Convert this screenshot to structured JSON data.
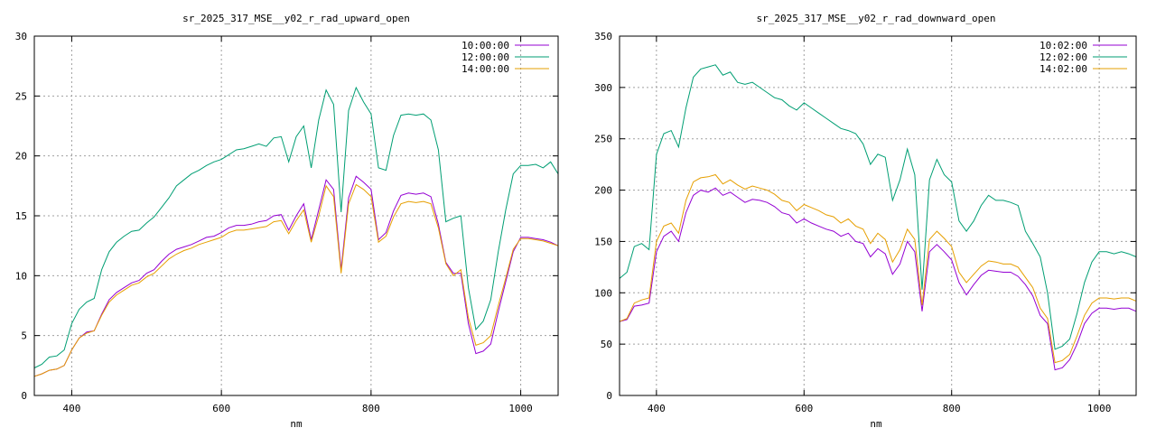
{
  "chart_data": [
    {
      "type": "line",
      "title": "sr_2025_317_MSE__y02_r_rad_upward_open",
      "xlabel": "nm",
      "ylabel": "",
      "xlim": [
        350,
        1050
      ],
      "ylim": [
        0,
        30
      ],
      "xticks": [
        400,
        600,
        800,
        1000
      ],
      "yticks": [
        0,
        5,
        10,
        15,
        20,
        25,
        30
      ],
      "grid": true,
      "legend_position": "top-right",
      "series": [
        {
          "name": "10:00:00",
          "color": "#9400d3",
          "x": [
            350,
            360,
            370,
            380,
            390,
            400,
            410,
            420,
            430,
            440,
            450,
            460,
            470,
            480,
            490,
            500,
            510,
            520,
            530,
            540,
            550,
            560,
            570,
            580,
            590,
            600,
            610,
            620,
            630,
            640,
            650,
            660,
            670,
            680,
            690,
            700,
            710,
            720,
            730,
            740,
            750,
            760,
            770,
            780,
            790,
            800,
            810,
            820,
            830,
            840,
            850,
            860,
            870,
            880,
            890,
            900,
            910,
            920,
            930,
            940,
            950,
            960,
            970,
            980,
            990,
            1000,
            1010,
            1020,
            1030,
            1040,
            1050
          ],
          "y": [
            1.6,
            1.8,
            2.1,
            2.2,
            2.5,
            3.8,
            4.8,
            5.3,
            5.4,
            6.8,
            8.0,
            8.6,
            9.0,
            9.4,
            9.6,
            10.2,
            10.5,
            11.2,
            11.8,
            12.2,
            12.4,
            12.6,
            12.9,
            13.2,
            13.3,
            13.6,
            14.0,
            14.2,
            14.2,
            14.3,
            14.5,
            14.6,
            15.0,
            15.1,
            13.8,
            15.0,
            16.0,
            13.0,
            15.5,
            18.0,
            17.2,
            10.5,
            16.5,
            18.3,
            17.8,
            17.2,
            13.0,
            13.6,
            15.4,
            16.7,
            16.9,
            16.8,
            16.9,
            16.6,
            14.3,
            11.1,
            10.2,
            10.2,
            6.0,
            3.5,
            3.7,
            4.3,
            7.0,
            9.5,
            12.0,
            13.2,
            13.2,
            13.1,
            13.0,
            12.8,
            12.5
          ]
        },
        {
          "name": "12:00:00",
          "color": "#009e73",
          "x": [
            350,
            360,
            370,
            380,
            390,
            400,
            410,
            420,
            430,
            440,
            450,
            460,
            470,
            480,
            490,
            500,
            510,
            520,
            530,
            540,
            550,
            560,
            570,
            580,
            590,
            600,
            610,
            620,
            630,
            640,
            650,
            660,
            670,
            680,
            690,
            700,
            710,
            720,
            730,
            740,
            750,
            760,
            770,
            780,
            790,
            800,
            810,
            820,
            830,
            840,
            850,
            860,
            870,
            880,
            890,
            900,
            910,
            920,
            930,
            940,
            950,
            960,
            970,
            980,
            990,
            1000,
            1010,
            1020,
            1030,
            1040,
            1050
          ],
          "y": [
            2.3,
            2.6,
            3.2,
            3.3,
            3.8,
            6.0,
            7.2,
            7.8,
            8.1,
            10.5,
            12.0,
            12.8,
            13.3,
            13.7,
            13.8,
            14.4,
            14.9,
            15.7,
            16.5,
            17.5,
            18.0,
            18.5,
            18.8,
            19.2,
            19.5,
            19.7,
            20.1,
            20.5,
            20.6,
            20.8,
            21.0,
            20.8,
            21.5,
            21.6,
            19.5,
            21.6,
            22.5,
            19.0,
            23.0,
            25.5,
            24.3,
            15.3,
            23.8,
            25.7,
            24.5,
            23.5,
            19.0,
            18.8,
            21.7,
            23.4,
            23.5,
            23.4,
            23.5,
            23.0,
            20.5,
            14.5,
            14.8,
            15.0,
            9.0,
            5.5,
            6.2,
            8.0,
            12.0,
            15.5,
            18.5,
            19.2,
            19.2,
            19.3,
            19.0,
            19.5,
            18.5
          ]
        },
        {
          "name": "14:00:00",
          "color": "#e69f00",
          "x": [
            350,
            360,
            370,
            380,
            390,
            400,
            410,
            420,
            430,
            440,
            450,
            460,
            470,
            480,
            490,
            500,
            510,
            520,
            530,
            540,
            550,
            560,
            570,
            580,
            590,
            600,
            610,
            620,
            630,
            640,
            650,
            660,
            670,
            680,
            690,
            700,
            710,
            720,
            730,
            740,
            750,
            760,
            770,
            780,
            790,
            800,
            810,
            820,
            830,
            840,
            850,
            860,
            870,
            880,
            890,
            900,
            910,
            920,
            930,
            940,
            950,
            960,
            970,
            980,
            990,
            1000,
            1010,
            1020,
            1030,
            1040,
            1050
          ],
          "y": [
            1.6,
            1.8,
            2.1,
            2.2,
            2.5,
            3.8,
            4.8,
            5.2,
            5.4,
            6.7,
            7.8,
            8.4,
            8.8,
            9.2,
            9.4,
            9.9,
            10.2,
            10.8,
            11.4,
            11.8,
            12.1,
            12.3,
            12.6,
            12.8,
            13.0,
            13.2,
            13.6,
            13.8,
            13.8,
            13.9,
            14.0,
            14.1,
            14.5,
            14.6,
            13.5,
            14.6,
            15.5,
            12.8,
            15.0,
            17.5,
            16.6,
            10.2,
            16.0,
            17.6,
            17.2,
            16.6,
            12.8,
            13.3,
            14.9,
            16.0,
            16.2,
            16.1,
            16.2,
            16.0,
            14.0,
            11.0,
            10.0,
            10.5,
            6.5,
            4.2,
            4.4,
            5.0,
            7.5,
            9.8,
            12.2,
            13.1,
            13.1,
            13.0,
            12.9,
            12.7,
            12.5
          ]
        }
      ]
    },
    {
      "type": "line",
      "title": "sr_2025_317_MSE__y02_r_rad_downward_open",
      "xlabel": "nm",
      "ylabel": "",
      "xlim": [
        350,
        1050
      ],
      "ylim": [
        0,
        350
      ],
      "xticks": [
        400,
        600,
        800,
        1000
      ],
      "yticks": [
        0,
        50,
        100,
        150,
        200,
        250,
        300,
        350
      ],
      "grid": true,
      "legend_position": "top-right",
      "series": [
        {
          "name": "10:02:00",
          "color": "#9400d3",
          "x": [
            350,
            360,
            370,
            380,
            390,
            400,
            410,
            420,
            430,
            440,
            450,
            460,
            470,
            480,
            490,
            500,
            510,
            520,
            530,
            540,
            550,
            560,
            570,
            580,
            590,
            600,
            610,
            620,
            630,
            640,
            650,
            660,
            670,
            680,
            690,
            700,
            710,
            720,
            730,
            740,
            750,
            760,
            770,
            780,
            790,
            800,
            810,
            820,
            830,
            840,
            850,
            860,
            870,
            880,
            890,
            900,
            910,
            920,
            930,
            940,
            950,
            960,
            970,
            980,
            990,
            1000,
            1010,
            1020,
            1030,
            1040,
            1050
          ],
          "y": [
            72,
            74,
            87,
            88,
            90,
            140,
            155,
            160,
            150,
            178,
            195,
            200,
            198,
            202,
            195,
            198,
            193,
            188,
            191,
            190,
            188,
            184,
            178,
            176,
            168,
            172,
            168,
            165,
            162,
            160,
            155,
            158,
            150,
            148,
            135,
            143,
            138,
            118,
            128,
            150,
            140,
            82,
            140,
            147,
            140,
            132,
            110,
            98,
            108,
            117,
            122,
            121,
            120,
            120,
            116,
            108,
            97,
            78,
            70,
            25,
            27,
            35,
            50,
            70,
            80,
            85,
            85,
            84,
            85,
            85,
            82
          ]
        },
        {
          "name": "12:02:00",
          "color": "#009e73",
          "x": [
            350,
            360,
            370,
            380,
            390,
            400,
            410,
            420,
            430,
            440,
            450,
            460,
            470,
            480,
            490,
            500,
            510,
            520,
            530,
            540,
            550,
            560,
            570,
            580,
            590,
            600,
            610,
            620,
            630,
            640,
            650,
            660,
            670,
            680,
            690,
            700,
            710,
            720,
            730,
            740,
            750,
            760,
            770,
            780,
            790,
            800,
            810,
            820,
            830,
            840,
            850,
            860,
            870,
            880,
            890,
            900,
            910,
            920,
            930,
            940,
            950,
            960,
            970,
            980,
            990,
            1000,
            1010,
            1020,
            1030,
            1040,
            1050
          ],
          "y": [
            114,
            120,
            145,
            148,
            142,
            235,
            255,
            258,
            242,
            280,
            310,
            318,
            320,
            322,
            312,
            315,
            305,
            303,
            305,
            300,
            295,
            290,
            288,
            282,
            278,
            285,
            280,
            275,
            270,
            265,
            260,
            258,
            255,
            245,
            225,
            235,
            232,
            190,
            210,
            240,
            215,
            103,
            210,
            230,
            215,
            208,
            170,
            160,
            170,
            185,
            195,
            190,
            190,
            188,
            185,
            160,
            148,
            135,
            100,
            45,
            48,
            55,
            80,
            110,
            130,
            140,
            140,
            138,
            140,
            138,
            135
          ]
        },
        {
          "name": "14:02:00",
          "color": "#e69f00",
          "x": [
            350,
            360,
            370,
            380,
            390,
            400,
            410,
            420,
            430,
            440,
            450,
            460,
            470,
            480,
            490,
            500,
            510,
            520,
            530,
            540,
            550,
            560,
            570,
            580,
            590,
            600,
            610,
            620,
            630,
            640,
            650,
            660,
            670,
            680,
            690,
            700,
            710,
            720,
            730,
            740,
            750,
            760,
            770,
            780,
            790,
            800,
            810,
            820,
            830,
            840,
            850,
            860,
            870,
            880,
            890,
            900,
            910,
            920,
            930,
            940,
            950,
            960,
            970,
            980,
            990,
            1000,
            1010,
            1020,
            1030,
            1040,
            1050
          ],
          "y": [
            72,
            75,
            90,
            93,
            95,
            150,
            165,
            168,
            158,
            190,
            208,
            212,
            213,
            215,
            206,
            210,
            205,
            201,
            204,
            202,
            200,
            196,
            190,
            188,
            180,
            186,
            183,
            180,
            176,
            174,
            168,
            172,
            165,
            162,
            148,
            158,
            152,
            130,
            142,
            162,
            152,
            88,
            152,
            160,
            153,
            145,
            120,
            110,
            118,
            126,
            131,
            130,
            128,
            128,
            125,
            115,
            105,
            85,
            75,
            32,
            34,
            40,
            58,
            78,
            90,
            95,
            95,
            94,
            95,
            95,
            92
          ]
        }
      ]
    }
  ]
}
